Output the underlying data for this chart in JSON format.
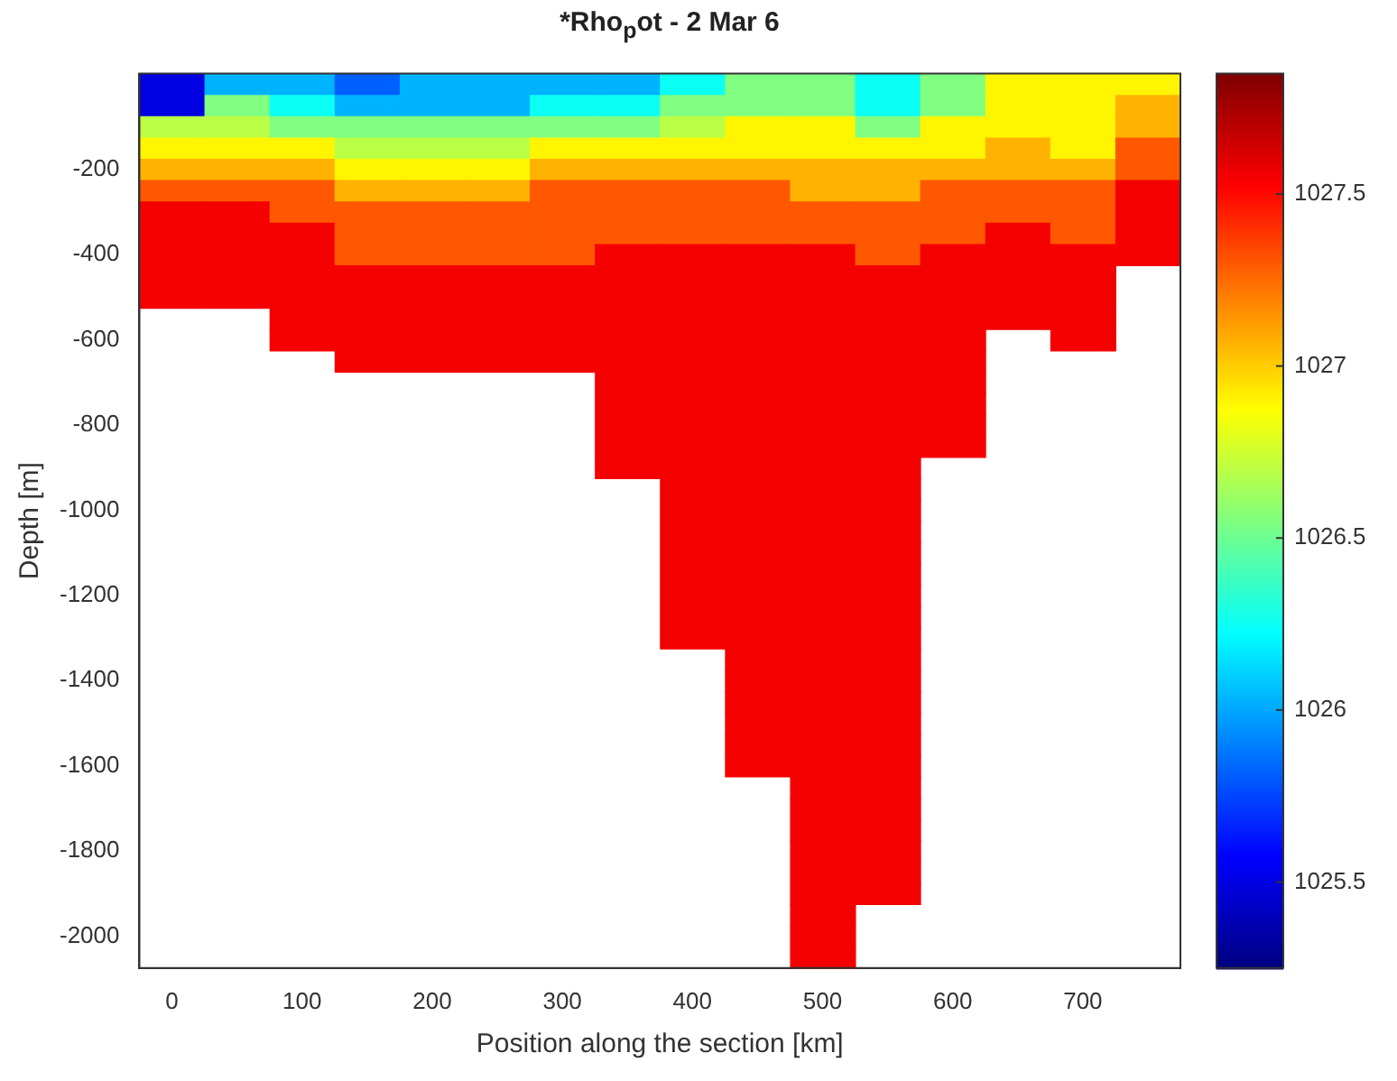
{
  "chart_data": {
    "type": "heatmap",
    "title": "*Rho$_{p}$ot - 2 Mar 6",
    "xlabel": "Position along the section [km]",
    "ylabel": "Depth [m]",
    "categories": [
      "0",
      null,
      "100",
      null,
      "200",
      null,
      "300",
      null,
      "400",
      null,
      "500",
      null,
      "600",
      null,
      "700",
      null
    ],
    "y_categories": [
      null,
      null,
      null,
      null,
      "-200",
      null,
      null,
      null,
      "-400",
      null,
      null,
      null,
      "-600",
      null,
      null,
      null,
      "-800",
      null,
      null,
      null,
      "-1000",
      null,
      null,
      null,
      "-1200",
      null,
      null,
      null,
      "-1400",
      null,
      null,
      null,
      "-1600",
      null,
      null,
      null,
      "-1800",
      null,
      null,
      null,
      "-2000",
      null
    ],
    "cells": [
      [
        1025.5,
        1026.03,
        1026.03,
        1025.82,
        1026.03,
        1026.03,
        1026.03,
        1026.03,
        1026.25,
        1026.55,
        1026.55,
        1026.25,
        1026.55,
        1026.9,
        1026.9,
        1026.9
      ],
      [
        1025.5,
        1026.55,
        1026.25,
        1026.03,
        1026.03,
        1026.03,
        1026.25,
        1026.25,
        1026.55,
        1026.55,
        1026.55,
        1026.25,
        1026.55,
        1026.9,
        1026.9,
        1027.07
      ],
      [
        1026.7,
        1026.7,
        1026.55,
        1026.55,
        1026.55,
        1026.55,
        1026.55,
        1026.55,
        1026.7,
        1026.9,
        1026.9,
        1026.55,
        1026.9,
        1026.9,
        1026.9,
        1027.07
      ],
      [
        1026.9,
        1026.9,
        1026.9,
        1026.7,
        1026.7,
        1026.7,
        1026.9,
        1026.9,
        1026.9,
        1026.9,
        1026.9,
        1026.9,
        1026.9,
        1027.07,
        1026.9,
        1027.3
      ],
      [
        1027.07,
        1027.07,
        1027.07,
        1026.9,
        1026.9,
        1026.9,
        1027.07,
        1027.07,
        1027.07,
        1027.07,
        1027.07,
        1027.07,
        1027.07,
        1027.07,
        1027.07,
        1027.3
      ],
      [
        1027.3,
        1027.3,
        1027.3,
        1027.07,
        1027.07,
        1027.07,
        1027.3,
        1027.3,
        1027.3,
        1027.3,
        1027.07,
        1027.07,
        1027.3,
        1027.3,
        1027.3,
        1027.55
      ],
      [
        1027.55,
        1027.55,
        1027.3,
        1027.3,
        1027.3,
        1027.3,
        1027.3,
        1027.3,
        1027.3,
        1027.3,
        1027.3,
        1027.3,
        1027.3,
        1027.3,
        1027.3,
        1027.55
      ],
      [
        1027.55,
        1027.55,
        1027.55,
        1027.3,
        1027.3,
        1027.3,
        1027.3,
        1027.3,
        1027.3,
        1027.3,
        1027.3,
        1027.3,
        1027.3,
        1027.55,
        1027.3,
        1027.55
      ],
      [
        1027.55,
        1027.55,
        1027.55,
        1027.3,
        1027.3,
        1027.3,
        1027.3,
        1027.55,
        1027.55,
        1027.55,
        1027.55,
        1027.3,
        1027.55,
        1027.55,
        1027.55,
        1027.55
      ],
      [
        1027.55,
        1027.55,
        1027.55,
        1027.55,
        1027.55,
        1027.55,
        1027.55,
        1027.55,
        1027.55,
        1027.55,
        1027.55,
        1027.55,
        1027.55,
        1027.55,
        1027.55,
        null
      ],
      [
        1027.55,
        1027.55,
        1027.55,
        1027.55,
        1027.55,
        1027.55,
        1027.55,
        1027.55,
        1027.55,
        1027.55,
        1027.55,
        1027.55,
        1027.55,
        1027.55,
        1027.55,
        null
      ],
      [
        null,
        null,
        1027.55,
        1027.55,
        1027.55,
        1027.55,
        1027.55,
        1027.55,
        1027.55,
        1027.55,
        1027.55,
        1027.55,
        1027.55,
        1027.55,
        1027.55,
        null
      ],
      [
        null,
        null,
        1027.55,
        1027.55,
        1027.55,
        1027.55,
        1027.55,
        1027.55,
        1027.55,
        1027.55,
        1027.55,
        1027.55,
        1027.55,
        null,
        1027.55,
        null
      ],
      [
        null,
        null,
        null,
        1027.55,
        1027.55,
        1027.55,
        1027.55,
        1027.55,
        1027.55,
        1027.55,
        1027.55,
        1027.55,
        1027.55,
        null,
        null,
        null
      ],
      [
        null,
        null,
        null,
        null,
        null,
        null,
        null,
        1027.55,
        1027.55,
        1027.55,
        1027.55,
        1027.55,
        1027.55,
        null,
        null,
        null
      ],
      [
        null,
        null,
        null,
        null,
        null,
        null,
        null,
        1027.55,
        1027.55,
        1027.55,
        1027.55,
        1027.55,
        1027.55,
        null,
        null,
        null
      ],
      [
        null,
        null,
        null,
        null,
        null,
        null,
        null,
        1027.55,
        1027.55,
        1027.55,
        1027.55,
        1027.55,
        1027.55,
        null,
        null,
        null
      ],
      [
        null,
        null,
        null,
        null,
        null,
        null,
        null,
        1027.55,
        1027.55,
        1027.55,
        1027.55,
        1027.55,
        1027.55,
        null,
        null,
        null
      ],
      [
        null,
        null,
        null,
        null,
        null,
        null,
        null,
        1027.55,
        1027.55,
        1027.55,
        1027.55,
        1027.55,
        null,
        null,
        null,
        null
      ],
      [
        null,
        null,
        null,
        null,
        null,
        null,
        null,
        null,
        1027.55,
        1027.55,
        1027.55,
        1027.55,
        null,
        null,
        null,
        null
      ],
      [
        null,
        null,
        null,
        null,
        null,
        null,
        null,
        null,
        1027.55,
        1027.55,
        1027.55,
        1027.55,
        null,
        null,
        null,
        null
      ],
      [
        null,
        null,
        null,
        null,
        null,
        null,
        null,
        null,
        1027.55,
        1027.55,
        1027.55,
        1027.55,
        null,
        null,
        null,
        null
      ],
      [
        null,
        null,
        null,
        null,
        null,
        null,
        null,
        null,
        1027.55,
        1027.55,
        1027.55,
        1027.55,
        null,
        null,
        null,
        null
      ],
      [
        null,
        null,
        null,
        null,
        null,
        null,
        null,
        null,
        1027.55,
        1027.55,
        1027.55,
        1027.55,
        null,
        null,
        null,
        null
      ],
      [
        null,
        null,
        null,
        null,
        null,
        null,
        null,
        null,
        1027.55,
        1027.55,
        1027.55,
        1027.55,
        null,
        null,
        null,
        null
      ],
      [
        null,
        null,
        null,
        null,
        null,
        null,
        null,
        null,
        1027.55,
        1027.55,
        1027.55,
        1027.55,
        null,
        null,
        null,
        null
      ],
      [
        null,
        null,
        null,
        null,
        null,
        null,
        null,
        null,
        1027.55,
        1027.55,
        1027.55,
        1027.55,
        null,
        null,
        null,
        null
      ],
      [
        null,
        null,
        null,
        null,
        null,
        null,
        null,
        null,
        null,
        1027.55,
        1027.55,
        1027.55,
        null,
        null,
        null,
        null
      ],
      [
        null,
        null,
        null,
        null,
        null,
        null,
        null,
        null,
        null,
        1027.55,
        1027.55,
        1027.55,
        null,
        null,
        null,
        null
      ],
      [
        null,
        null,
        null,
        null,
        null,
        null,
        null,
        null,
        null,
        1027.55,
        1027.55,
        1027.55,
        null,
        null,
        null,
        null
      ],
      [
        null,
        null,
        null,
        null,
        null,
        null,
        null,
        null,
        null,
        1027.55,
        1027.55,
        1027.55,
        null,
        null,
        null,
        null
      ],
      [
        null,
        null,
        null,
        null,
        null,
        null,
        null,
        null,
        null,
        1027.55,
        1027.55,
        1027.55,
        null,
        null,
        null,
        null
      ],
      [
        null,
        null,
        null,
        null,
        null,
        null,
        null,
        null,
        null,
        1027.55,
        1027.55,
        1027.55,
        null,
        null,
        null,
        null
      ],
      [
        null,
        null,
        null,
        null,
        null,
        null,
        null,
        null,
        null,
        null,
        1027.55,
        1027.55,
        null,
        null,
        null,
        null
      ],
      [
        null,
        null,
        null,
        null,
        null,
        null,
        null,
        null,
        null,
        null,
        1027.55,
        1027.55,
        null,
        null,
        null,
        null
      ],
      [
        null,
        null,
        null,
        null,
        null,
        null,
        null,
        null,
        null,
        null,
        1027.55,
        1027.55,
        null,
        null,
        null,
        null
      ],
      [
        null,
        null,
        null,
        null,
        null,
        null,
        null,
        null,
        null,
        null,
        1027.55,
        1027.55,
        null,
        null,
        null,
        null
      ],
      [
        null,
        null,
        null,
        null,
        null,
        null,
        null,
        null,
        null,
        null,
        1027.55,
        1027.55,
        null,
        null,
        null,
        null
      ],
      [
        null,
        null,
        null,
        null,
        null,
        null,
        null,
        null,
        null,
        null,
        1027.55,
        1027.55,
        null,
        null,
        null,
        null
      ],
      [
        null,
        null,
        null,
        null,
        null,
        null,
        null,
        null,
        null,
        null,
        1027.55,
        null,
        null,
        null,
        null,
        null
      ],
      [
        null,
        null,
        null,
        null,
        null,
        null,
        null,
        null,
        null,
        null,
        1027.55,
        null,
        null,
        null,
        null,
        null
      ],
      [
        null,
        null,
        null,
        null,
        null,
        null,
        null,
        null,
        null,
        null,
        1027.55,
        null,
        null,
        null,
        null,
        null
      ]
    ],
    "clim": [
      1025.25,
      1027.85
    ],
    "cticks": [
      1025.5,
      1026,
      1026.5,
      1027,
      1027.5
    ]
  }
}
